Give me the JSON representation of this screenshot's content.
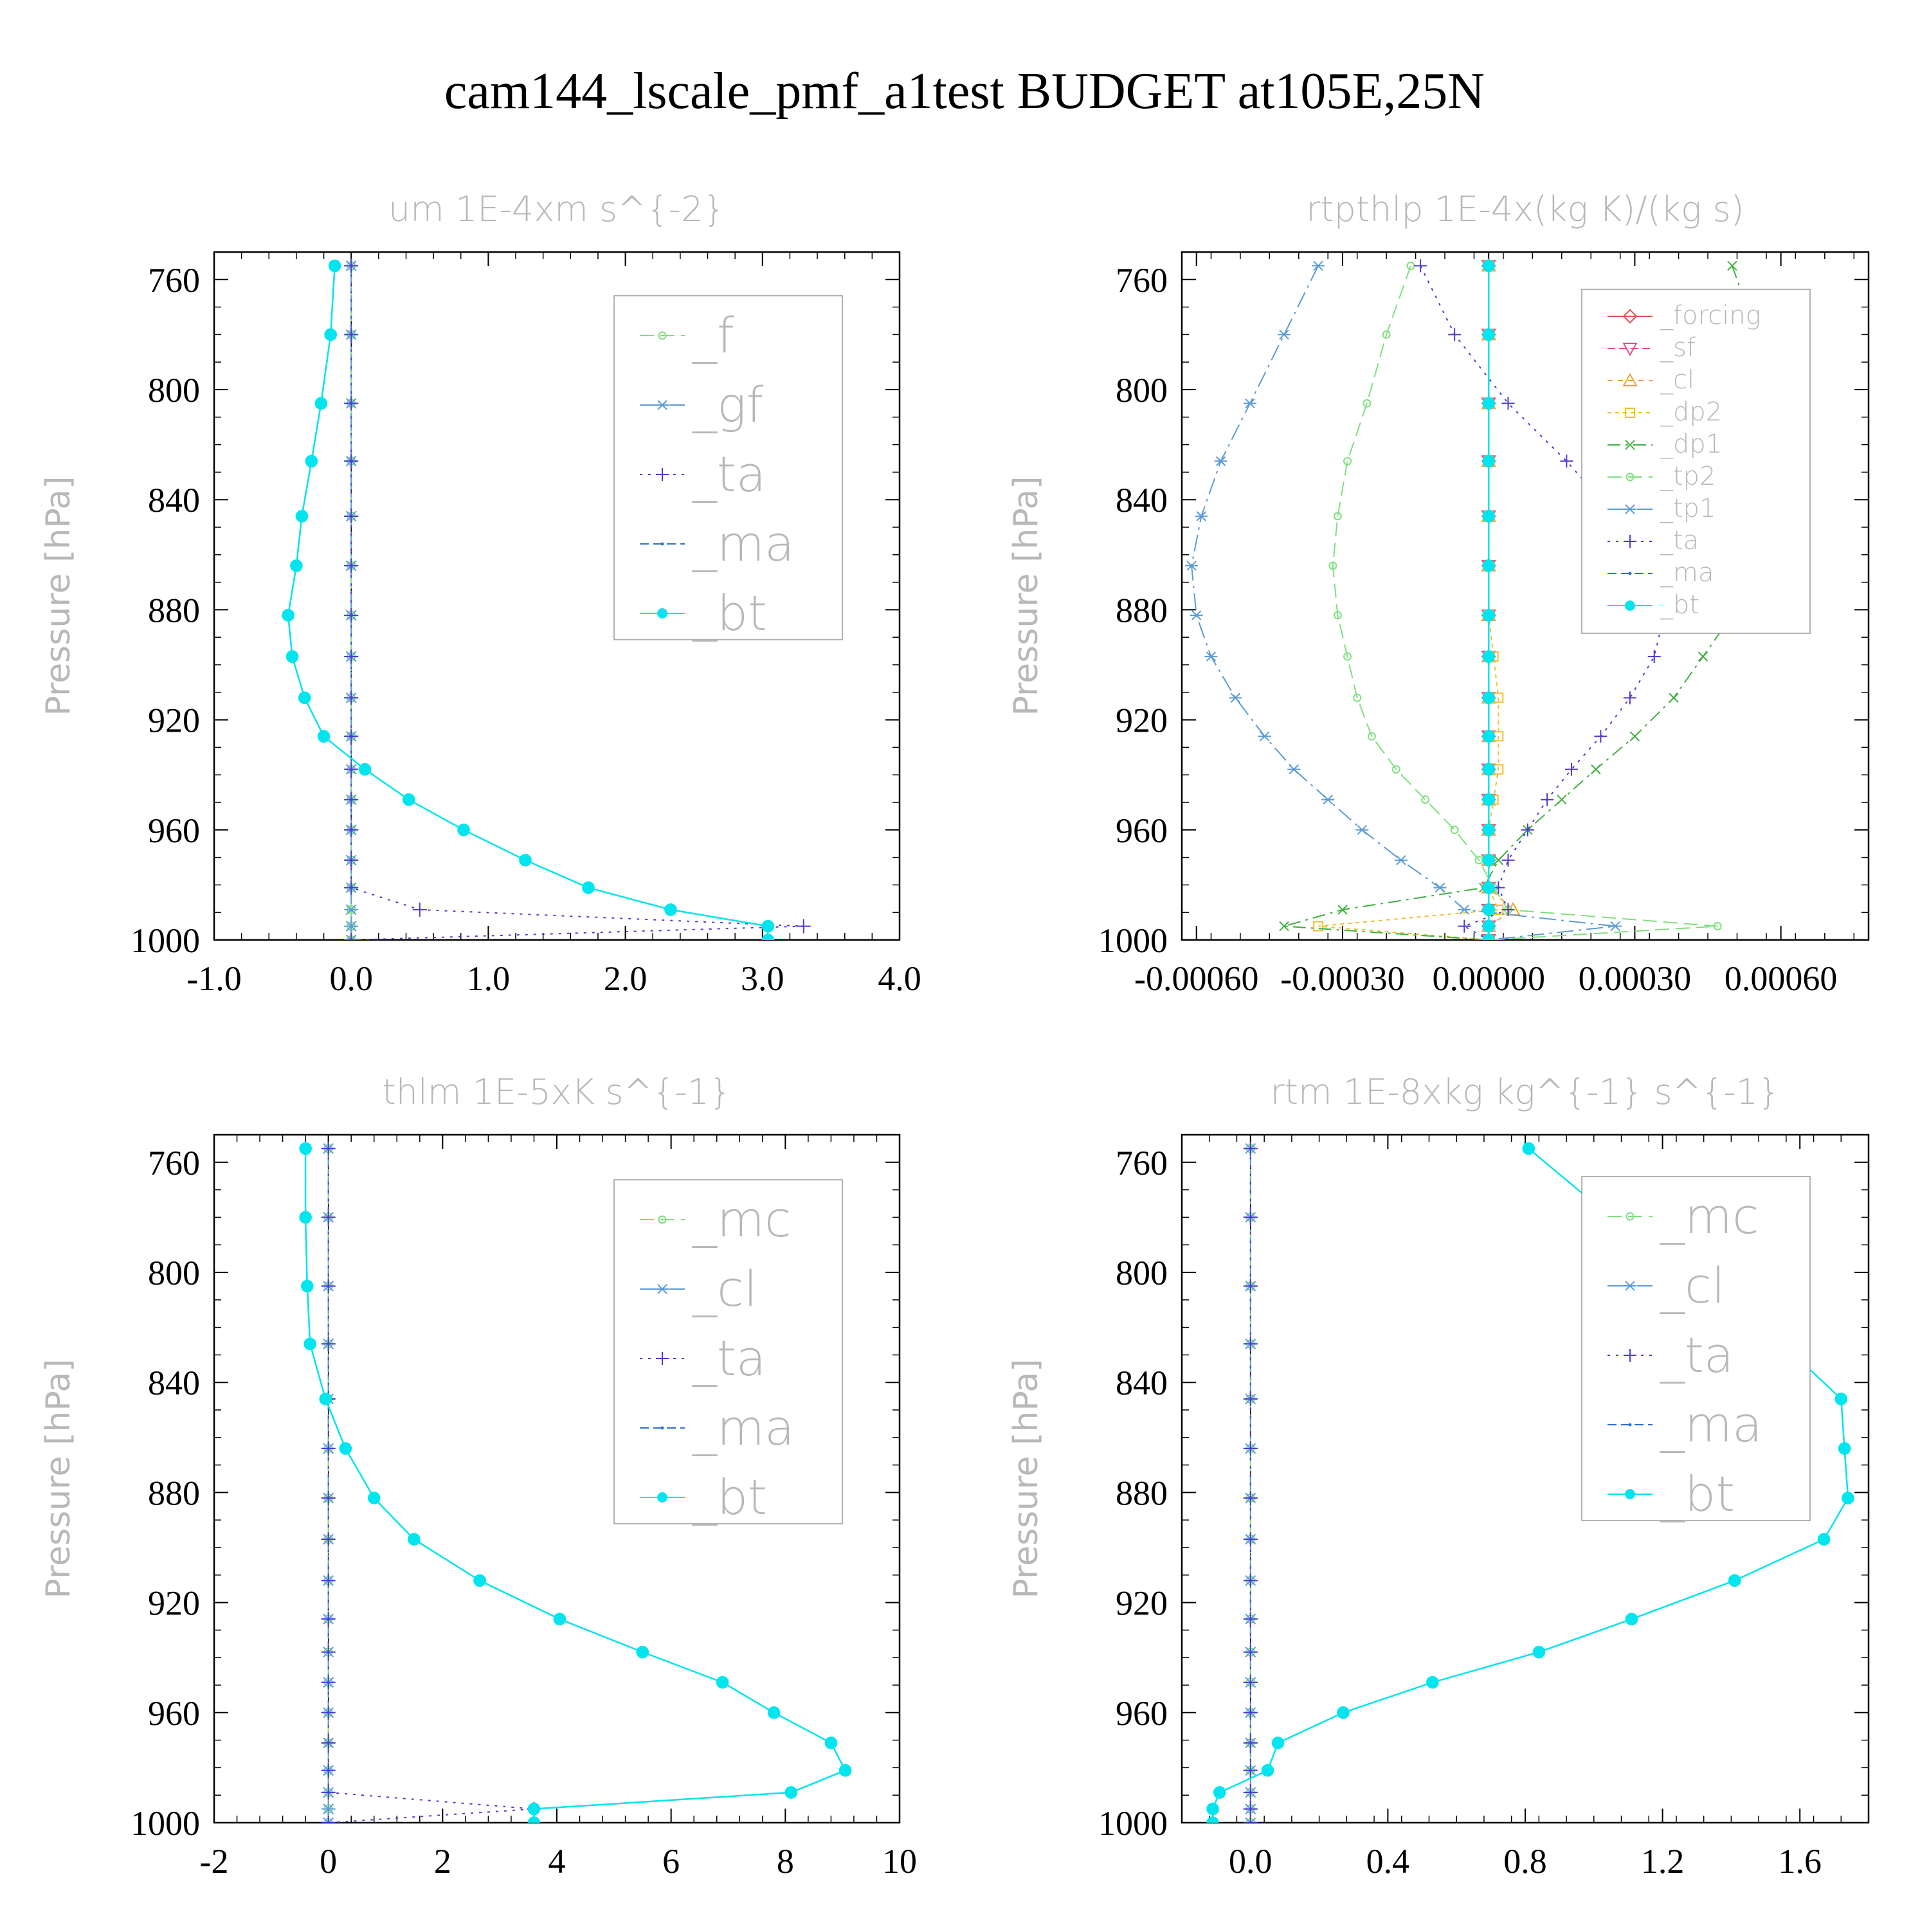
{
  "figure": {
    "title": "cam144_lscale_pmf_a1test  BUDGET at105E,25N"
  },
  "chart_data": [
    {
      "id": "um",
      "type": "line",
      "title": "um  1E-4xm s^{-2}",
      "xlabel": "",
      "ylabel": "Pressure [hPa]",
      "xlim": [
        -1.0,
        4.0
      ],
      "ylim": [
        1000,
        750
      ],
      "xticks": [
        "-1.0",
        "0.0",
        "1.0",
        "2.0",
        "3.0",
        "4.0"
      ],
      "xtick_values": [
        -1,
        0,
        1,
        2,
        3,
        4
      ],
      "yticks": [
        "760",
        "800",
        "840",
        "880",
        "920",
        "960",
        "1000"
      ],
      "ytick_values": [
        760,
        800,
        840,
        880,
        920,
        960,
        1000
      ],
      "legend_position": "top-right",
      "legend_font": "large",
      "levels": [
        755,
        780,
        805,
        826,
        846,
        864,
        882,
        897,
        912,
        926,
        938,
        949,
        960,
        971,
        981,
        989,
        995,
        1000
      ],
      "series": [
        {
          "name": "_f",
          "color": "#7ee07e",
          "marker": "circle",
          "values": [
            0,
            0,
            0,
            0,
            0,
            0,
            0,
            0,
            0,
            0,
            0,
            0,
            0,
            0,
            0,
            0,
            0,
            0
          ]
        },
        {
          "name": "_gf",
          "color": "#5b9bd5",
          "marker": "star",
          "values": [
            0,
            0,
            0,
            0,
            0,
            0,
            0,
            0,
            0,
            0,
            0,
            0,
            0,
            0,
            0,
            0,
            0,
            0
          ]
        },
        {
          "name": "_ta",
          "color": "#4b3bd3",
          "marker": "plus",
          "values": [
            0,
            0,
            0,
            0,
            0,
            0,
            0,
            0,
            0,
            0,
            0,
            0,
            0,
            0,
            0,
            0.5,
            3.3,
            0
          ]
        },
        {
          "name": "_ma",
          "color": "#2a6fd6",
          "marker": "dot",
          "values": [
            -0.12,
            -0.15,
            -0.22,
            -0.29,
            -0.36,
            -0.4,
            -0.46,
            -0.43,
            -0.34,
            -0.2,
            0.1,
            0.42,
            0.82,
            1.27,
            1.73,
            2.33,
            3.04,
            3.04
          ]
        },
        {
          "name": "_bt",
          "color": "#00e5ee",
          "marker": "filled-circle",
          "values": [
            -0.12,
            -0.15,
            -0.22,
            -0.29,
            -0.36,
            -0.4,
            -0.46,
            -0.43,
            -0.34,
            -0.2,
            0.1,
            0.42,
            0.82,
            1.27,
            1.73,
            2.33,
            3.04,
            3.04
          ]
        }
      ]
    },
    {
      "id": "rtpthlp",
      "type": "line",
      "title": "rtpthlp  1E-4x(kg K)/(kg s)",
      "xlabel": "",
      "ylabel": "Pressure [hPa]",
      "xlim": [
        -0.00063,
        0.00078
      ],
      "ylim": [
        1000,
        750
      ],
      "xticks": [
        "-0.00060",
        "-0.00030",
        "0.00000",
        "0.00030",
        "0.00060"
      ],
      "xtick_values": [
        -0.0006,
        -0.0003,
        0,
        0.0003,
        0.0006
      ],
      "yticks": [
        "760",
        "800",
        "840",
        "880",
        "920",
        "960",
        "1000"
      ],
      "ytick_values": [
        760,
        800,
        840,
        880,
        920,
        960,
        1000
      ],
      "legend_position": "top-right",
      "legend_font": "small",
      "levels": [
        755,
        780,
        805,
        826,
        846,
        864,
        882,
        897,
        912,
        926,
        938,
        949,
        960,
        971,
        981,
        989,
        995,
        1000
      ],
      "series": [
        {
          "name": "_forcing",
          "color": "#e05050",
          "marker": "diamond",
          "values": [
            0,
            0,
            0,
            0,
            0,
            0,
            0,
            0,
            0,
            0,
            0,
            0,
            0,
            0,
            0,
            0,
            0,
            0
          ]
        },
        {
          "name": "_sf",
          "color": "#e0507a",
          "marker": "triangle-down",
          "values": [
            0,
            0,
            0,
            0,
            0,
            0,
            0,
            0,
            0,
            0,
            0,
            0,
            0,
            0,
            0,
            0,
            0,
            0
          ]
        },
        {
          "name": "_cl",
          "color": "#f0a040",
          "marker": "triangle-up",
          "values": [
            0,
            0,
            0,
            0,
            0,
            0,
            0,
            0,
            0,
            0,
            0,
            0,
            0,
            0,
            0,
            5e-05,
            0,
            0
          ]
        },
        {
          "name": "_dp2",
          "color": "#f0c030",
          "marker": "square",
          "values": [
            0,
            0,
            0,
            0,
            0,
            0,
            0,
            1e-05,
            2e-05,
            2e-05,
            2e-05,
            1e-05,
            0,
            0,
            0,
            2e-05,
            -0.00035,
            0
          ]
        },
        {
          "name": "_dp1",
          "color": "#40b040",
          "marker": "x",
          "values": [
            0.0005,
            0.00055,
            0.00058,
            0.0006,
            0.0006,
            0.00056,
            0.0005,
            0.00044,
            0.00038,
            0.0003,
            0.00022,
            0.00015,
            8e-05,
            2e-05,
            -1e-05,
            -0.0003,
            -0.00042,
            0
          ]
        },
        {
          "name": "_tp2",
          "color": "#7ee07e",
          "marker": "circle",
          "values": [
            -0.00016,
            -0.00021,
            -0.00025,
            -0.00029,
            -0.00031,
            -0.00032,
            -0.00031,
            -0.00029,
            -0.00027,
            -0.00024,
            -0.00019,
            -0.00013,
            -7e-05,
            -2e-05,
            1e-05,
            4e-05,
            0.00047,
            0
          ]
        },
        {
          "name": "_tp1",
          "color": "#5b9bd5",
          "marker": "star",
          "values": [
            -0.00035,
            -0.00042,
            -0.00049,
            -0.00055,
            -0.00059,
            -0.00061,
            -0.0006,
            -0.00057,
            -0.00052,
            -0.00046,
            -0.0004,
            -0.00033,
            -0.00026,
            -0.00018,
            -0.0001,
            -5e-05,
            0.00026,
            0
          ]
        },
        {
          "name": "_ta",
          "color": "#4b3bd3",
          "marker": "plus",
          "values": [
            -0.00014,
            -7e-05,
            4e-05,
            0.00016,
            0.00026,
            0.00033,
            0.00036,
            0.00034,
            0.00029,
            0.00023,
            0.00017,
            0.00012,
            8e-05,
            4e-05,
            2e-05,
            4e-05,
            -5e-05,
            0
          ]
        },
        {
          "name": "_ma",
          "color": "#2a6fd6",
          "marker": "dot",
          "values": [
            0,
            0,
            0,
            0,
            0,
            0,
            0,
            0,
            0,
            0,
            0,
            0,
            0,
            0,
            0,
            0,
            0,
            0
          ]
        },
        {
          "name": "_bt",
          "color": "#00e5ee",
          "marker": "filled-circle",
          "values": [
            0,
            0,
            0,
            0,
            0,
            0,
            0,
            0,
            0,
            0,
            0,
            0,
            0,
            0,
            0,
            0,
            0,
            0
          ]
        }
      ]
    },
    {
      "id": "thlm",
      "type": "line",
      "title": "thlm  1E-5xK s^{-1}",
      "xlabel": "",
      "ylabel": "Pressure [hPa]",
      "xlim": [
        -2,
        10
      ],
      "ylim": [
        1000,
        750
      ],
      "xticks": [
        "-2",
        "0",
        "2",
        "4",
        "6",
        "8",
        "10"
      ],
      "xtick_values": [
        -2,
        0,
        2,
        4,
        6,
        8,
        10
      ],
      "yticks": [
        "760",
        "800",
        "840",
        "880",
        "920",
        "960",
        "1000"
      ],
      "ytick_values": [
        760,
        800,
        840,
        880,
        920,
        960,
        1000
      ],
      "legend_position": "top-right",
      "legend_font": "large",
      "levels": [
        755,
        780,
        805,
        826,
        846,
        864,
        882,
        897,
        912,
        926,
        938,
        949,
        960,
        971,
        981,
        989,
        995,
        1000
      ],
      "series": [
        {
          "name": "_mc",
          "color": "#7ee07e",
          "marker": "circle",
          "values": [
            0,
            0,
            0,
            0,
            0,
            0,
            0,
            0,
            0,
            0,
            0,
            0,
            0,
            0,
            0,
            0,
            0,
            0
          ]
        },
        {
          "name": "_cl",
          "color": "#5b9bd5",
          "marker": "star",
          "values": [
            0,
            0,
            0,
            0,
            0,
            0,
            0,
            0,
            0,
            0,
            0,
            0,
            0,
            0,
            0,
            0,
            0,
            0
          ]
        },
        {
          "name": "_ta",
          "color": "#4b3bd3",
          "marker": "plus",
          "values": [
            0,
            0,
            0,
            0,
            0,
            0,
            0,
            0,
            0,
            0,
            0,
            0,
            0,
            0,
            0,
            0,
            3.6,
            0
          ]
        },
        {
          "name": "_ma",
          "color": "#2a6fd6",
          "marker": "dot",
          "values": [
            -0.4,
            -0.4,
            -0.37,
            -0.32,
            -0.05,
            0.3,
            0.8,
            1.5,
            2.65,
            4.05,
            5.5,
            6.9,
            7.8,
            8.8,
            9.05,
            8.1,
            3.6,
            3.6
          ]
        },
        {
          "name": "_bt",
          "color": "#00e5ee",
          "marker": "filled-circle",
          "values": [
            -0.4,
            -0.4,
            -0.37,
            -0.32,
            -0.05,
            0.3,
            0.8,
            1.5,
            2.65,
            4.05,
            5.5,
            6.9,
            7.8,
            8.8,
            9.05,
            8.1,
            3.6,
            3.6
          ]
        }
      ]
    },
    {
      "id": "rtm",
      "type": "line",
      "title": "rtm  1E-8xkg kg^{-1} s^{-1}",
      "xlabel": "",
      "ylabel": "Pressure [hPa]",
      "xlim": [
        -0.2,
        1.8
      ],
      "ylim": [
        1000,
        750
      ],
      "xticks": [
        "0.0",
        "0.4",
        "0.8",
        "1.2",
        "1.6"
      ],
      "xtick_values": [
        0,
        0.4,
        0.8,
        1.2,
        1.6
      ],
      "yticks": [
        "760",
        "800",
        "840",
        "880",
        "920",
        "960",
        "1000"
      ],
      "ytick_values": [
        760,
        800,
        840,
        880,
        920,
        960,
        1000
      ],
      "legend_position": "top-right",
      "legend_font": "large",
      "levels": [
        755,
        780,
        805,
        826,
        846,
        864,
        882,
        897,
        912,
        926,
        938,
        949,
        960,
        971,
        981,
        989,
        995,
        1000
      ],
      "series": [
        {
          "name": "_mc",
          "color": "#7ee07e",
          "marker": "circle",
          "values": [
            0,
            0,
            0,
            0,
            0,
            0,
            0,
            0,
            0,
            0,
            0,
            0,
            0,
            0,
            0,
            0,
            0,
            0
          ]
        },
        {
          "name": "_cl",
          "color": "#5b9bd5",
          "marker": "star",
          "values": [
            0,
            0,
            0,
            0,
            0,
            0,
            0,
            0,
            0,
            0,
            0,
            0,
            0,
            0,
            0,
            0,
            0,
            0
          ]
        },
        {
          "name": "_ta",
          "color": "#4b3bd3",
          "marker": "plus",
          "values": [
            0,
            0,
            0,
            0,
            0,
            0,
            0,
            0,
            0,
            0,
            0,
            0,
            0,
            0,
            0,
            0,
            0,
            0
          ]
        },
        {
          "name": "_ma",
          "color": "#2a6fd6",
          "marker": "dot",
          "values": [
            0.81,
            1.05,
            1.34,
            1.55,
            1.72,
            1.73,
            1.74,
            1.67,
            1.41,
            1.11,
            0.84,
            0.53,
            0.27,
            0.08,
            0.05,
            -0.09,
            -0.11,
            -0.11
          ]
        },
        {
          "name": "_bt",
          "color": "#00e5ee",
          "marker": "filled-circle",
          "values": [
            0.81,
            1.05,
            1.34,
            1.55,
            1.72,
            1.73,
            1.74,
            1.67,
            1.41,
            1.11,
            0.84,
            0.53,
            0.27,
            0.08,
            0.05,
            -0.09,
            -0.11,
            -0.11
          ]
        }
      ]
    }
  ]
}
